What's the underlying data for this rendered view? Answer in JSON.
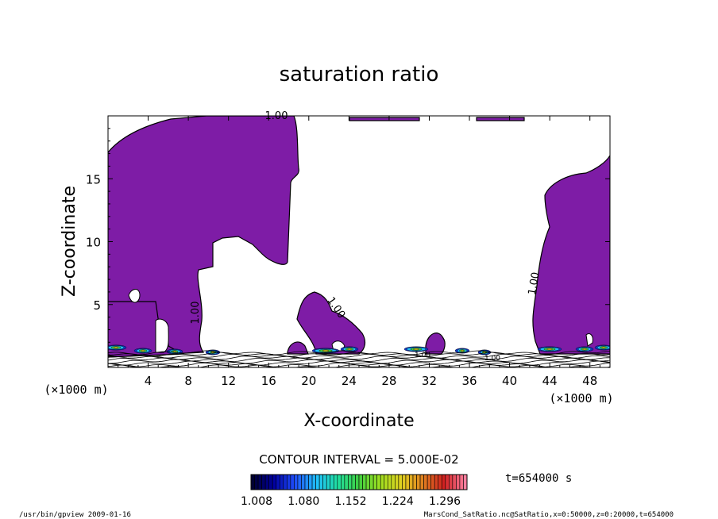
{
  "chart_data": {
    "type": "contour",
    "title": "saturation ratio",
    "xlabel": "X-coordinate",
    "ylabel": "Z-coordinate",
    "x_unit": "(×1000 m)",
    "y_unit": "(×1000 m)",
    "xlim": [
      0,
      50
    ],
    "ylim": [
      0,
      20
    ],
    "x_ticks": [
      4,
      8,
      12,
      16,
      20,
      24,
      28,
      32,
      36,
      40,
      44,
      48
    ],
    "y_ticks": [
      5,
      10,
      15
    ],
    "contour_interval_text": "CONTOUR INTERVAL = 5.000E-02",
    "contour_label": "1.00",
    "colorbar": {
      "labels": [
        "1.008",
        "1.080",
        "1.152",
        "1.224",
        "1.296"
      ],
      "colors": [
        "#000033",
        "#0000a0",
        "#2050ff",
        "#20c0ff",
        "#20e0a0",
        "#40d040",
        "#a0e020",
        "#e0d020",
        "#e08020",
        "#d02020",
        "#ff80a0"
      ]
    },
    "fill_color": "#7e1ca6",
    "time_text": "t=654000 s",
    "footer_left": "/usr/bin/gpview   2009-01-16",
    "footer_right": "MarsCond_SatRatio.nc@SatRatio,x=0:50000,z=0:20000,t=654000"
  }
}
